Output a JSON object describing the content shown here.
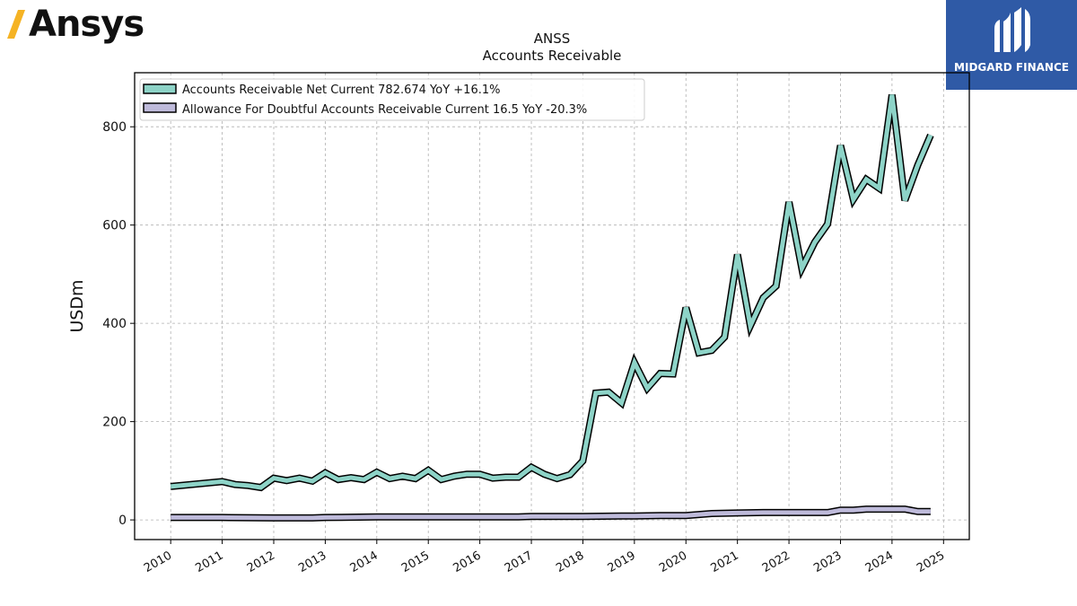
{
  "header": {
    "left_logo_text": "Ansys",
    "right_logo_text": "MIDGARD FINANCE"
  },
  "colors": {
    "series_1": "#8dd3c7",
    "series_2": "#bebada",
    "left_logo_accent": "#f5b324",
    "right_logo_bg": "#2f5aa6"
  },
  "icons": {
    "left_logo_mark": "ansys-chevron-icon",
    "right_logo_mark": "midgard-finance-mark-icon"
  },
  "chart_data": {
    "type": "line",
    "title": "ANSS",
    "subtitle": "Accounts Receivable",
    "xlabel": "",
    "ylabel": "USDm",
    "xlim": [
      2009.3,
      2025.5
    ],
    "ylim": [
      -40,
      910
    ],
    "grid": true,
    "legend_position": "top-left",
    "x_ticks": [
      2010,
      2011,
      2012,
      2013,
      2014,
      2015,
      2016,
      2017,
      2018,
      2019,
      2020,
      2021,
      2022,
      2023,
      2024,
      2025
    ],
    "x_tick_labels": [
      "2010",
      "2011",
      "2012",
      "2013",
      "2014",
      "2015",
      "2016",
      "2017",
      "2018",
      "2019",
      "2020",
      "2021",
      "2022",
      "2023",
      "2024",
      "2025"
    ],
    "y_ticks": [
      0,
      200,
      400,
      600,
      800
    ],
    "y_tick_labels": [
      "0",
      "200",
      "400",
      "600",
      "800"
    ],
    "series": [
      {
        "name": "Accounts Receivable Net Current",
        "legend_label": "Accounts Receivable Net Current  782.674 YoY +16.1%",
        "x": [
          2010.0,
          2011.0,
          2011.25,
          2011.5,
          2011.75,
          2012.0,
          2012.25,
          2012.5,
          2012.75,
          2013.0,
          2013.25,
          2013.5,
          2013.75,
          2014.0,
          2014.25,
          2014.5,
          2014.75,
          2015.0,
          2015.25,
          2015.5,
          2015.75,
          2016.0,
          2016.25,
          2016.5,
          2016.75,
          2017.0,
          2017.25,
          2017.5,
          2017.75,
          2018.0,
          2018.25,
          2018.5,
          2018.75,
          2019.0,
          2019.25,
          2019.5,
          2019.75,
          2020.0,
          2020.25,
          2020.5,
          2020.75,
          2021.0,
          2021.25,
          2021.5,
          2021.75,
          2022.0,
          2022.25,
          2022.5,
          2022.75,
          2023.0,
          2023.25,
          2023.5,
          2023.75,
          2024.0,
          2024.25,
          2024.5,
          2024.75
        ],
        "values": [
          68,
          78,
          72,
          70,
          66,
          85,
          80,
          85,
          79,
          96,
          82,
          86,
          82,
          97,
          84,
          89,
          84,
          101,
          82,
          89,
          93,
          93,
          85,
          87,
          87,
          107,
          93,
          84,
          92,
          120,
          258,
          260,
          238,
          320,
          268,
          298,
          297,
          432,
          340,
          345,
          372,
          540,
          395,
          452,
          476,
          647,
          512,
          565,
          602,
          762,
          652,
          693,
          675,
          865,
          650,
          722,
          783
        ]
      },
      {
        "name": "Allowance For Doubtful Accounts Receivable Current",
        "legend_label": "Allowance For Doubtful Accounts Receivable Current  16.5 YoY -20.3%",
        "x": [
          2010.0,
          2011.0,
          2012.0,
          2012.75,
          2013.0,
          2014.0,
          2015.0,
          2016.0,
          2016.75,
          2017.0,
          2018.0,
          2018.75,
          2019.0,
          2019.5,
          2020.0,
          2020.25,
          2020.5,
          2021.0,
          2021.5,
          2022.0,
          2022.5,
          2022.75,
          2023.0,
          2023.25,
          2023.5,
          2024.0,
          2024.25,
          2024.5,
          2024.75
        ],
        "values": [
          5,
          5,
          4,
          4,
          5,
          6,
          6,
          6,
          6,
          7,
          7,
          8,
          8,
          9,
          9,
          11,
          13,
          14,
          15,
          15,
          15,
          15,
          20,
          20,
          22,
          22,
          22,
          17,
          17
        ]
      }
    ]
  }
}
